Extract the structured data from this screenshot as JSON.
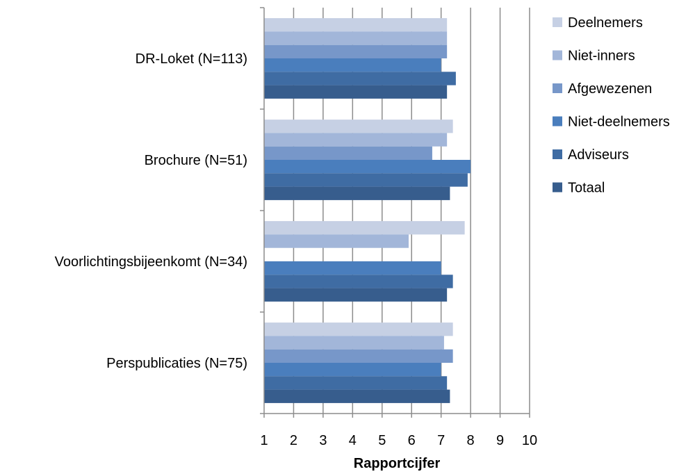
{
  "chart_data": {
    "type": "bar",
    "orientation": "horizontal",
    "title": "",
    "xlabel": "Rapportcijfer",
    "ylabel": "",
    "xlim": [
      1,
      10
    ],
    "xticks": [
      "1",
      "2",
      "3",
      "4",
      "5",
      "6",
      "7",
      "8",
      "9",
      "10"
    ],
    "grid": "vertical",
    "legend_position": "right",
    "categories": [
      "DR-Loket (N=113)",
      "Brochure (N=51)",
      "Voorlichtingsbijeenkomt (N=34)",
      "Perspublicaties (N=75)"
    ],
    "series": [
      {
        "name": "Deelnemers",
        "color": "#c6d0e4",
        "values": [
          7.2,
          7.4,
          7.8,
          7.4
        ]
      },
      {
        "name": "Niet-inners",
        "color": "#a2b6d9",
        "values": [
          7.2,
          7.2,
          5.9,
          7.1
        ]
      },
      {
        "name": "Afgewezenen",
        "color": "#7797c9",
        "values": [
          7.2,
          6.7,
          null,
          7.4
        ]
      },
      {
        "name": "Niet-deelnemers",
        "color": "#4a7ebd",
        "values": [
          7.0,
          8.0,
          7.0,
          7.0
        ]
      },
      {
        "name": "Adviseurs",
        "color": "#3f6ca3",
        "values": [
          7.5,
          7.9,
          7.4,
          7.2
        ]
      },
      {
        "name": "Totaal",
        "color": "#375d8d",
        "values": [
          7.2,
          7.3,
          7.2,
          7.3
        ]
      }
    ]
  }
}
